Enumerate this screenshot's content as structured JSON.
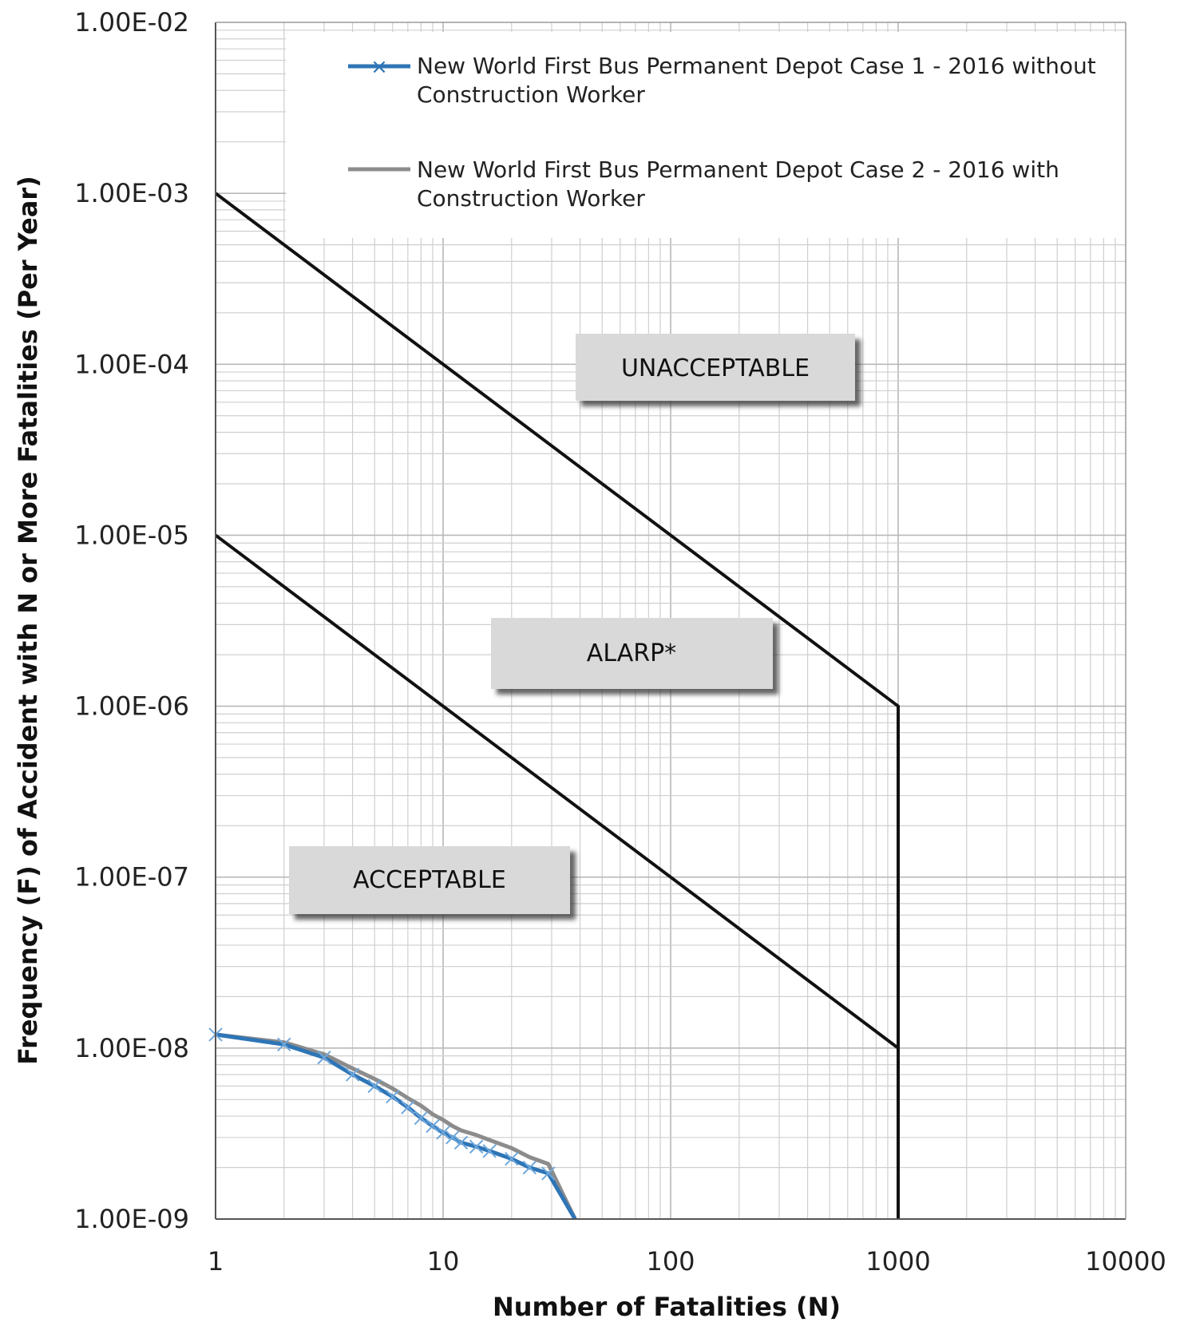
{
  "chart_data": {
    "type": "line",
    "xlabel": "Number of Fatalities (N)",
    "ylabel": "Frequency (F) of Accident with N or More Fatalities (Per Year)",
    "x_scale": "log",
    "y_scale": "log",
    "xlim": [
      1,
      10000
    ],
    "ylim": [
      1e-09,
      0.01
    ],
    "x_ticks": [
      {
        "value": 1,
        "label": "1"
      },
      {
        "value": 10,
        "label": "10"
      },
      {
        "value": 100,
        "label": "100"
      },
      {
        "value": 1000,
        "label": "1000"
      },
      {
        "value": 10000,
        "label": "10000"
      }
    ],
    "y_ticks": [
      {
        "value": 0.01,
        "label": "1.00E-02"
      },
      {
        "value": 0.001,
        "label": "1.00E-03"
      },
      {
        "value": 0.0001,
        "label": "1.00E-04"
      },
      {
        "value": 1e-05,
        "label": "1.00E-05"
      },
      {
        "value": 1e-06,
        "label": "1.00E-06"
      },
      {
        "value": 1e-07,
        "label": "1.00E-07"
      },
      {
        "value": 1e-08,
        "label": "1.00E-08"
      },
      {
        "value": 1e-09,
        "label": "1.00E-09"
      }
    ],
    "grid": true,
    "legend_position": "top-right",
    "series": [
      {
        "name": "New World First Bus Permanent Depot Case 1 - 2016 without Construction Worker",
        "color": "#2e75b6",
        "marker": "x",
        "points": [
          [
            1,
            1.2e-08
          ],
          [
            2,
            1.05e-08
          ],
          [
            3,
            8.8e-09
          ],
          [
            4,
            7e-09
          ],
          [
            5,
            6e-09
          ],
          [
            6,
            5.2e-09
          ],
          [
            7,
            4.5e-09
          ],
          [
            8,
            3.9e-09
          ],
          [
            9,
            3.5e-09
          ],
          [
            10,
            3.2e-09
          ],
          [
            11,
            3e-09
          ],
          [
            12,
            2.8e-09
          ],
          [
            14,
            2.65e-09
          ],
          [
            16,
            2.5e-09
          ],
          [
            20,
            2.25e-09
          ],
          [
            24,
            2e-09
          ],
          [
            29,
            1.85e-09
          ],
          [
            38,
            1e-09
          ]
        ]
      },
      {
        "name": "New World First Bus Permanent Depot Case 2 - 2016 with Construction Worker",
        "color": "#8c8c8c",
        "marker": "none",
        "points": [
          [
            1,
            1.2e-08
          ],
          [
            2,
            1.08e-08
          ],
          [
            3,
            9.2e-09
          ],
          [
            4,
            7.6e-09
          ],
          [
            5,
            6.6e-09
          ],
          [
            6,
            5.8e-09
          ],
          [
            7,
            5.1e-09
          ],
          [
            8,
            4.6e-09
          ],
          [
            9,
            4.1e-09
          ],
          [
            10,
            3.8e-09
          ],
          [
            11,
            3.5e-09
          ],
          [
            12,
            3.3e-09
          ],
          [
            14,
            3.1e-09
          ],
          [
            16,
            2.9e-09
          ],
          [
            20,
            2.6e-09
          ],
          [
            24,
            2.3e-09
          ],
          [
            29,
            2.1e-09
          ],
          [
            38,
            1e-09
          ]
        ]
      }
    ],
    "criteria_lines": [
      {
        "points": [
          [
            1,
            0.001
          ],
          [
            1000,
            1e-06
          ],
          [
            1000,
            1e-09
          ]
        ],
        "color": "#111111"
      },
      {
        "points": [
          [
            1,
            1e-05
          ],
          [
            1000,
            1e-08
          ]
        ],
        "color": "#111111"
      }
    ],
    "regions": [
      {
        "label": "UNACCEPTABLE"
      },
      {
        "label": "ALARP*"
      },
      {
        "label": "ACCEPTABLE"
      }
    ]
  }
}
